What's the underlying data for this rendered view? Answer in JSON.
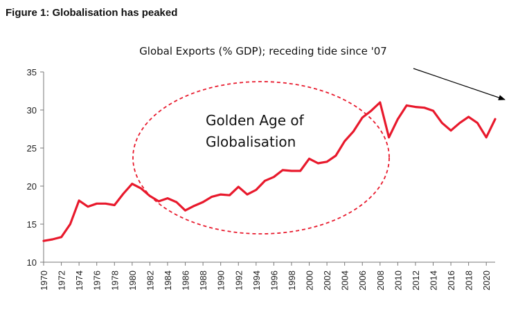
{
  "figure_label": "Figure 1: Globalisation has peaked",
  "chart_data": {
    "type": "line",
    "title": "Global Exports (% GDP); receding tide since '07",
    "xlabel": "",
    "ylabel": "",
    "ylim": [
      10,
      35
    ],
    "yticks": [
      10,
      15,
      20,
      25,
      30,
      35
    ],
    "xlim": [
      1970,
      2021
    ],
    "xticks": [
      1970,
      1972,
      1974,
      1976,
      1978,
      1980,
      1982,
      1984,
      1986,
      1988,
      1990,
      1992,
      1994,
      1996,
      1998,
      2000,
      2002,
      2004,
      2006,
      2008,
      2010,
      2012,
      2014,
      2016,
      2018,
      2020
    ],
    "grid": false,
    "legend": "none",
    "series": [
      {
        "color": "#e8192c",
        "x": [
          1970,
          1971,
          1972,
          1973,
          1974,
          1975,
          1976,
          1977,
          1978,
          1979,
          1980,
          1981,
          1982,
          1983,
          1984,
          1985,
          1986,
          1987,
          1988,
          1989,
          1990,
          1991,
          1992,
          1993,
          1994,
          1995,
          1996,
          1997,
          1998,
          1999,
          2000,
          2001,
          2002,
          2003,
          2004,
          2005,
          2006,
          2007,
          2008,
          2009,
          2010,
          2011,
          2012,
          2013,
          2014,
          2015,
          2016,
          2017,
          2018,
          2019,
          2020,
          2021
        ],
        "values": [
          12.8,
          13.0,
          13.3,
          15.0,
          18.1,
          17.3,
          17.7,
          17.7,
          17.5,
          19.0,
          20.3,
          19.7,
          18.7,
          18.0,
          18.4,
          17.9,
          16.8,
          17.4,
          17.9,
          18.6,
          18.9,
          18.8,
          19.9,
          18.9,
          19.5,
          20.7,
          21.2,
          22.1,
          22.0,
          22.0,
          23.6,
          23.0,
          23.2,
          24.0,
          25.9,
          27.2,
          29.0,
          29.9,
          31.0,
          26.4,
          28.8,
          30.6,
          30.4,
          30.3,
          29.9,
          28.3,
          27.3,
          28.3,
          29.1,
          28.3,
          26.4,
          28.8
        ]
      }
    ],
    "annotations": [
      {
        "text_lines": [
          "Golden Age of",
          "Globalisation"
        ]
      }
    ]
  }
}
